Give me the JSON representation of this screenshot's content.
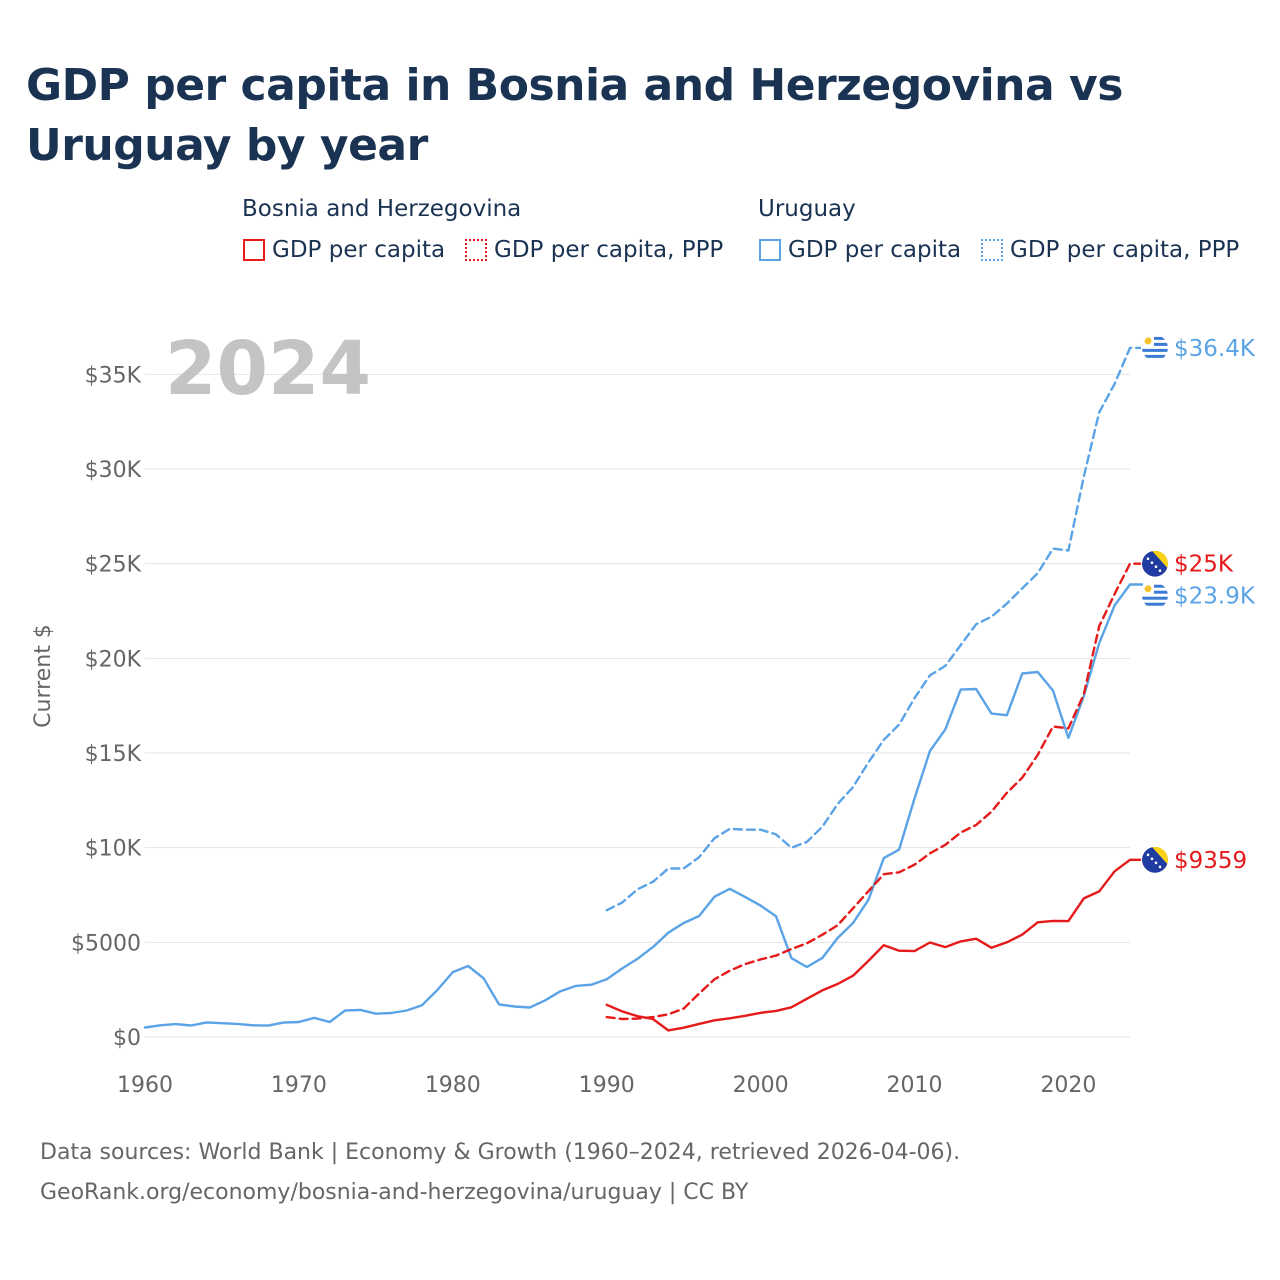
{
  "title": "GDP per capita in Bosnia and Herzegovina vs Uruguay by year",
  "legend": {
    "groups": [
      {
        "name": "Bosnia and Herzegovina",
        "color": "#e51a1a",
        "items": [
          {
            "label": "GDP per capita",
            "style": "solid"
          },
          {
            "label": "GDP per capita, PPP",
            "style": "dotted"
          }
        ]
      },
      {
        "name": "Uruguay",
        "color": "#5aa3e6",
        "items": [
          {
            "label": "GDP per capita",
            "style": "solid"
          },
          {
            "label": "GDP per capita, PPP",
            "style": "dotted"
          }
        ]
      }
    ]
  },
  "footer": {
    "line1": "Data sources: World Bank | Economy & Growth (1960–2024, retrieved 2026-04-06).",
    "line2": "GeoRank.org/economy/bosnia-and-herzegovina/uruguay | CC BY"
  },
  "chart_data": {
    "type": "line",
    "title": "GDP per capita in Bosnia and Herzegovina vs Uruguay by year",
    "year_watermark": "2024",
    "ylabel": "Current $",
    "xlabel": "",
    "xlim": [
      1960,
      2024
    ],
    "ylim": [
      0,
      36500
    ],
    "grid": true,
    "x_ticks": [
      1960,
      1970,
      1980,
      1990,
      2000,
      2010,
      2020
    ],
    "y_ticks": [
      0,
      5000,
      10000,
      15000,
      20000,
      25000,
      30000,
      35000
    ],
    "y_tick_labels": [
      "$0",
      "$5000",
      "$10K",
      "$15K",
      "$20K",
      "$25K",
      "$30K",
      "$35K"
    ],
    "series": [
      {
        "name": "Uruguay GDP per capita, PPP",
        "country": "Uruguay",
        "color": "#5aa3e6",
        "dash": "dashed",
        "end_label": "$36.4K",
        "flag": "uruguay-flag-icon",
        "x": [
          1990,
          1991,
          1992,
          1993,
          1994,
          1995,
          1996,
          1997,
          1998,
          1999,
          2000,
          2001,
          2002,
          2003,
          2004,
          2005,
          2006,
          2007,
          2008,
          2009,
          2010,
          2011,
          2012,
          2013,
          2014,
          2015,
          2016,
          2017,
          2018,
          2019,
          2020,
          2021,
          2022,
          2023,
          2024
        ],
        "y": [
          6700,
          7100,
          7800,
          8200,
          8900,
          8900,
          9500,
          10500,
          11000,
          10950,
          10950,
          10700,
          10000,
          10300,
          11100,
          12300,
          13200,
          14500,
          15700,
          16500,
          17900,
          19100,
          19600,
          20700,
          21800,
          22200,
          22900,
          23700,
          24500,
          25800,
          25700,
          29600,
          33000,
          34500,
          36400
        ]
      },
      {
        "name": "Uruguay GDP per capita",
        "country": "Uruguay",
        "color": "#5aa3e6",
        "dash": "solid",
        "end_label": "$23.9K",
        "flag": "uruguay-flag-icon",
        "x": [
          1960,
          1961,
          1962,
          1963,
          1964,
          1965,
          1966,
          1967,
          1968,
          1969,
          1970,
          1971,
          1972,
          1973,
          1974,
          1975,
          1976,
          1977,
          1978,
          1979,
          1980,
          1981,
          1982,
          1983,
          1984,
          1985,
          1986,
          1987,
          1988,
          1989,
          1990,
          1991,
          1992,
          1993,
          1994,
          1995,
          1996,
          1997,
          1998,
          1999,
          2000,
          2001,
          2002,
          2003,
          2004,
          2005,
          2006,
          2007,
          2008,
          2009,
          2010,
          2011,
          2012,
          2013,
          2014,
          2015,
          2016,
          2017,
          2018,
          2019,
          2020,
          2021,
          2022,
          2023,
          2024
        ],
        "y": [
          500,
          620,
          680,
          610,
          770,
          730,
          690,
          620,
          600,
          760,
          790,
          1010,
          790,
          1400,
          1430,
          1230,
          1270,
          1400,
          1680,
          2480,
          3430,
          3750,
          3100,
          1720,
          1610,
          1560,
          1940,
          2420,
          2700,
          2760,
          3050,
          3620,
          4130,
          4750,
          5510,
          6020,
          6390,
          7410,
          7830,
          7390,
          6940,
          6380,
          4170,
          3700,
          4170,
          5230,
          6020,
          7240,
          9450,
          9900,
          12600,
          15100,
          16250,
          18350,
          18380,
          17080,
          17000,
          19200,
          19280,
          18300,
          15800,
          18000,
          20800,
          22800,
          23900
        ]
      },
      {
        "name": "Bosnia and Herzegovina GDP per capita, PPP",
        "country": "Bosnia and Herzegovina",
        "color": "#e51a1a",
        "dash": "dashed",
        "end_label": "$25K",
        "flag": "bosnia-flag-icon",
        "x": [
          1990,
          1991,
          1992,
          1993,
          1994,
          1995,
          1996,
          1997,
          1998,
          1999,
          2000,
          2001,
          2002,
          2003,
          2004,
          2005,
          2006,
          2007,
          2008,
          2009,
          2010,
          2011,
          2012,
          2013,
          2014,
          2015,
          2016,
          2017,
          2018,
          2019,
          2020,
          2021,
          2022,
          2023,
          2024
        ],
        "y": [
          1050,
          950,
          970,
          1050,
          1200,
          1500,
          2300,
          3050,
          3500,
          3850,
          4100,
          4300,
          4650,
          4950,
          5400,
          5900,
          6800,
          7700,
          8600,
          8700,
          9100,
          9700,
          10150,
          10800,
          11200,
          11900,
          12900,
          13700,
          14900,
          16400,
          16300,
          18100,
          21700,
          23400,
          25000
        ]
      },
      {
        "name": "Bosnia and Herzegovina GDP per capita",
        "country": "Bosnia and Herzegovina",
        "color": "#e51a1a",
        "dash": "solid",
        "end_label": "$9359",
        "flag": "bosnia-flag-icon",
        "x": [
          1990,
          1991,
          1992,
          1993,
          1994,
          1995,
          1996,
          1997,
          1998,
          1999,
          2000,
          2001,
          2002,
          2003,
          2004,
          2005,
          2006,
          2007,
          2008,
          2009,
          2010,
          2011,
          2012,
          2013,
          2014,
          2015,
          2016,
          2017,
          2018,
          2019,
          2020,
          2021,
          2022,
          2023,
          2024
        ],
        "y": [
          1700,
          1350,
          1100,
          950,
          350,
          490,
          690,
          880,
          990,
          1120,
          1280,
          1380,
          1570,
          2020,
          2460,
          2800,
          3240,
          4020,
          4850,
          4560,
          4540,
          4990,
          4750,
          5050,
          5190,
          4710,
          5000,
          5410,
          6060,
          6130,
          6120,
          7320,
          7690,
          8750,
          9359
        ]
      }
    ]
  }
}
